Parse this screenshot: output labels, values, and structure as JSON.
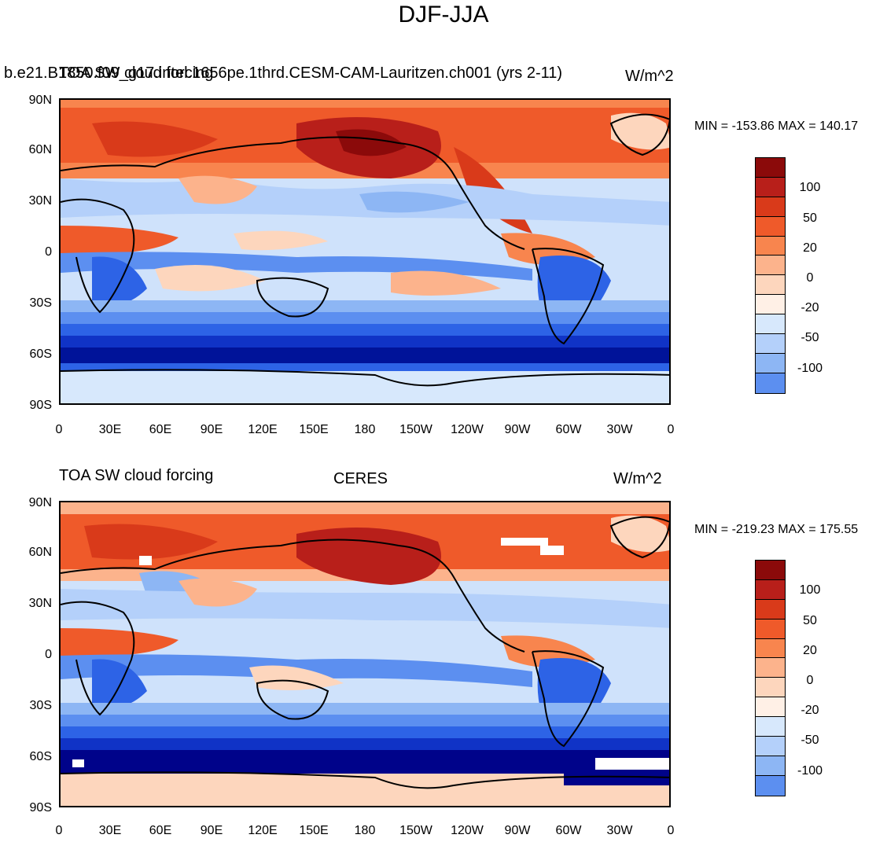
{
  "title": "DJF-JJA",
  "colorbar": {
    "colors": [
      "#8b0a0a",
      "#b81f1a",
      "#d93a1a",
      "#ef5a2a",
      "#f8854e",
      "#fcb38c",
      "#fdd6bd",
      "#fff0e6",
      "#d7e8fc",
      "#b4d0fa",
      "#8db6f4",
      "#5c8ff0",
      "#2d63e6",
      "#1033c6",
      "#001399",
      "#00038a"
    ],
    "labels": [
      "100",
      "50",
      "20",
      "0",
      "-20",
      "-50",
      "-100"
    ]
  },
  "yticks": [
    "90N",
    "60N",
    "30N",
    "0",
    "30S",
    "60S",
    "90S"
  ],
  "xticks": [
    "0",
    "30E",
    "60E",
    "90E",
    "120E",
    "150E",
    "180",
    "150W",
    "120W",
    "90W",
    "60W",
    "30W",
    "0"
  ],
  "panels": [
    {
      "left_text": "TOA SW cloud forcing",
      "center_text": "b.e21.B1850.f09_g17.intel.1656pe.1thrd.CESM-CAM-Lauritzen.ch001 (yrs 2-11)",
      "right_text": "W/m^2",
      "minmax": "MIN = -153.86 MAX = 140.17"
    },
    {
      "left_text": "TOA SW cloud forcing",
      "center_text": "CERES",
      "right_text": "W/m^2",
      "minmax": "MIN = -219.23 MAX = 175.55"
    }
  ]
}
